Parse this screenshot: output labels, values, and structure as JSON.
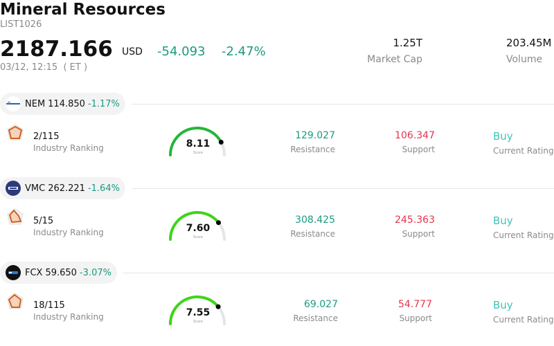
{
  "header": {
    "title": "Mineral Resources",
    "code": "LIST1026",
    "price": "2187.166",
    "currency": "USD",
    "change": "-54.093",
    "change_pct": "-2.47%",
    "time": "03/12, 12:15  ( ET )",
    "market_cap_value": "1.25T",
    "market_cap_label": "Market Cap",
    "volume_value": "203.45M",
    "volume_label": "Volume"
  },
  "colors": {
    "positive_teal": "#1a9a7f",
    "support_red": "#e5344d",
    "rating_cyan": "#3cc4b6",
    "gauge_green": "#3fd41a"
  },
  "stocks": [
    {
      "symbol": "NEM",
      "price": "114.850",
      "change": "-1.17%",
      "logo_icon": "newmont-logo-icon",
      "rank": "2/115",
      "rank_label": "Industry Ranking",
      "score": "8.11",
      "score_fraction": 0.811,
      "score_label": "Score",
      "resistance": "129.027",
      "resistance_label": "Resistance",
      "support": "106.347",
      "support_label": "Support",
      "rating": "Buy",
      "rating_label": "Current Rating"
    },
    {
      "symbol": "VMC",
      "price": "262.221",
      "change": "-1.64%",
      "logo_icon": "vulcan-logo-icon",
      "rank": "5/15",
      "rank_label": "Industry Ranking",
      "score": "7.60",
      "score_fraction": 0.76,
      "score_label": "Score",
      "resistance": "308.425",
      "resistance_label": "Resistance",
      "support": "245.363",
      "support_label": "Support",
      "rating": "Buy",
      "rating_label": "Current Rating"
    },
    {
      "symbol": "FCX",
      "price": "59.650",
      "change": "-3.07%",
      "logo_icon": "freeport-logo-icon",
      "rank": "18/115",
      "rank_label": "Industry Ranking",
      "score": "7.55",
      "score_fraction": 0.755,
      "score_label": "Score",
      "resistance": "69.027",
      "resistance_label": "Resistance",
      "support": "54.777",
      "support_label": "Support",
      "rating": "Buy",
      "rating_label": "Current Rating"
    }
  ]
}
